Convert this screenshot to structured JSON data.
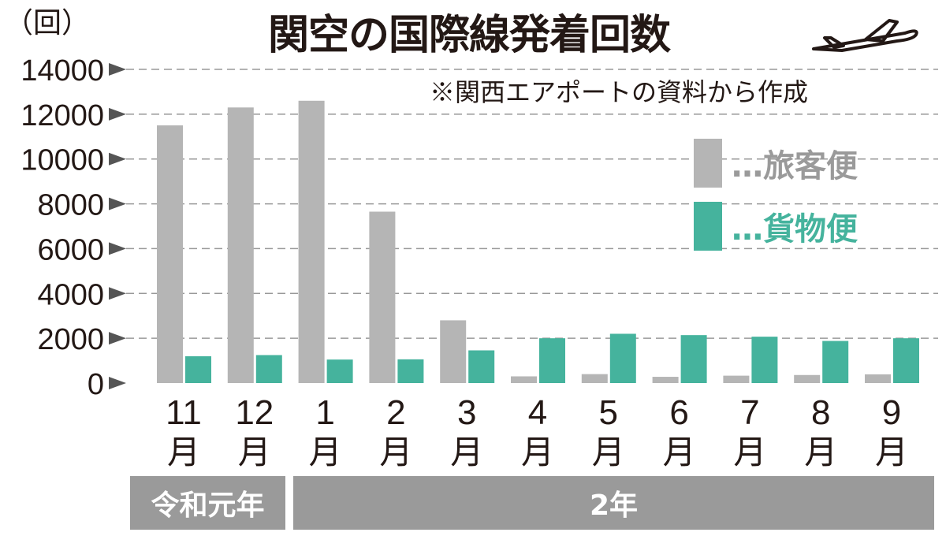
{
  "chart_data": {
    "type": "bar",
    "title": "関空の国際線発着回数",
    "source_note": "※関西エアポートの資料から作成",
    "ylabel": "（回）",
    "ylim": [
      0,
      14000
    ],
    "yticks": [
      0,
      2000,
      4000,
      6000,
      8000,
      10000,
      12000,
      14000
    ],
    "grid": true,
    "legend_position": "top-right",
    "categories": [
      "11月",
      "12月",
      "1月",
      "2月",
      "3月",
      "4月",
      "5月",
      "6月",
      "7月",
      "8月",
      "9月"
    ],
    "category_numbers": [
      "11",
      "12",
      "1",
      "2",
      "3",
      "4",
      "5",
      "6",
      "7",
      "8",
      "9"
    ],
    "month_suffix": "月",
    "year_groups": [
      {
        "label": "令和元年",
        "count": 2
      },
      {
        "label": "2年",
        "count": 9
      }
    ],
    "series": [
      {
        "name": "旅客便",
        "legend_label": "…旅客便",
        "color": "#b5b5b5",
        "values": [
          11500,
          12300,
          12600,
          7650,
          2800,
          300,
          400,
          280,
          330,
          360,
          390
        ]
      },
      {
        "name": "貨物便",
        "legend_label": "…貨物便",
        "color": "#45b39d",
        "values": [
          1200,
          1250,
          1050,
          1060,
          1460,
          2000,
          2200,
          2140,
          2070,
          1880,
          2000
        ]
      }
    ]
  }
}
